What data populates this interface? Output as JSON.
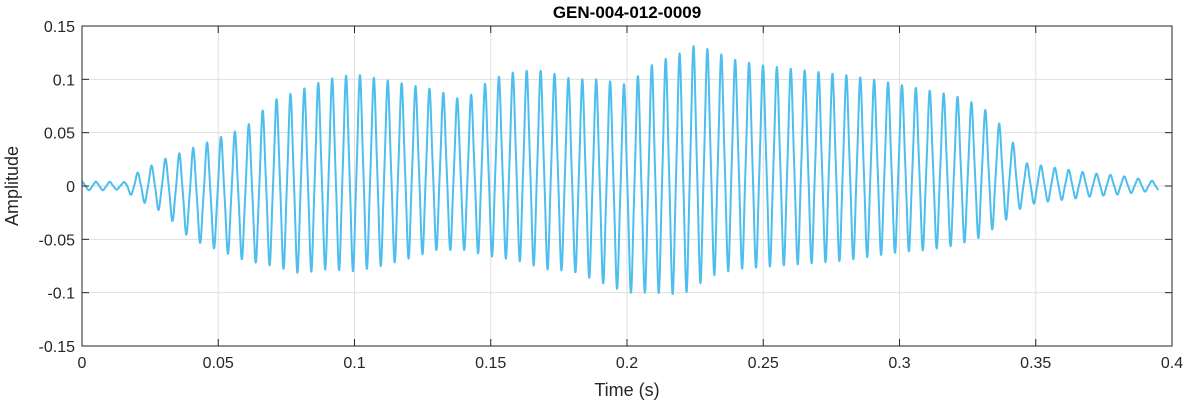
{
  "chart_data": {
    "type": "line",
    "title": "GEN-004-012-0009",
    "xlabel": "Time (s)",
    "ylabel": "Amplitude",
    "xlim": [
      0,
      0.4
    ],
    "ylim": [
      -0.15,
      0.15
    ],
    "xticks": [
      0,
      0.05,
      0.1,
      0.15,
      0.2,
      0.25,
      0.3,
      0.35,
      0.4
    ],
    "xtick_labels": [
      "0",
      "0.05",
      "0.1",
      "0.15",
      "0.2",
      "0.25",
      "0.3",
      "0.35",
      "0.4"
    ],
    "yticks": [
      -0.15,
      -0.1,
      -0.05,
      0,
      0.05,
      0.1,
      0.15
    ],
    "ytick_labels": [
      "-0.15",
      "-0.1",
      "-0.05",
      "0",
      "0.05",
      "0.1",
      "0.15"
    ],
    "grid": true,
    "line_color": "#4DBEEE",
    "series": [
      {
        "x_start": 0,
        "x_end": 0.395,
        "cycle_period_s": 0.0051,
        "envelope": {
          "t": [
            0,
            0.01,
            0.015,
            0.02,
            0.03,
            0.04,
            0.05,
            0.06,
            0.07,
            0.08,
            0.09,
            0.1,
            0.11,
            0.12,
            0.13,
            0.14,
            0.15,
            0.16,
            0.17,
            0.18,
            0.19,
            0.2,
            0.21,
            0.22,
            0.225,
            0.23,
            0.24,
            0.25,
            0.26,
            0.27,
            0.28,
            0.29,
            0.3,
            0.31,
            0.32,
            0.33,
            0.34,
            0.345,
            0.35,
            0.36,
            0.37,
            0.38,
            0.395
          ],
          "upper": [
            0.004,
            0.004,
            0.003,
            0.012,
            0.025,
            0.035,
            0.045,
            0.055,
            0.08,
            0.09,
            0.1,
            0.105,
            0.1,
            0.095,
            0.09,
            0.08,
            0.1,
            0.108,
            0.108,
            0.1,
            0.1,
            0.095,
            0.115,
            0.125,
            0.132,
            0.128,
            0.118,
            0.113,
            0.11,
            0.107,
            0.104,
            0.1,
            0.095,
            0.09,
            0.085,
            0.075,
            0.05,
            0.022,
            0.02,
            0.016,
            0.012,
            0.01,
            0.004
          ],
          "lower": [
            -0.004,
            -0.004,
            -0.003,
            -0.012,
            -0.025,
            -0.05,
            -0.06,
            -0.07,
            -0.075,
            -0.082,
            -0.078,
            -0.08,
            -0.075,
            -0.068,
            -0.06,
            -0.06,
            -0.066,
            -0.07,
            -0.078,
            -0.08,
            -0.09,
            -0.1,
            -0.1,
            -0.102,
            -0.095,
            -0.085,
            -0.078,
            -0.076,
            -0.074,
            -0.072,
            -0.07,
            -0.066,
            -0.062,
            -0.06,
            -0.056,
            -0.048,
            -0.03,
            -0.02,
            -0.016,
            -0.013,
            -0.01,
            -0.008,
            -0.004
          ]
        }
      }
    ]
  }
}
